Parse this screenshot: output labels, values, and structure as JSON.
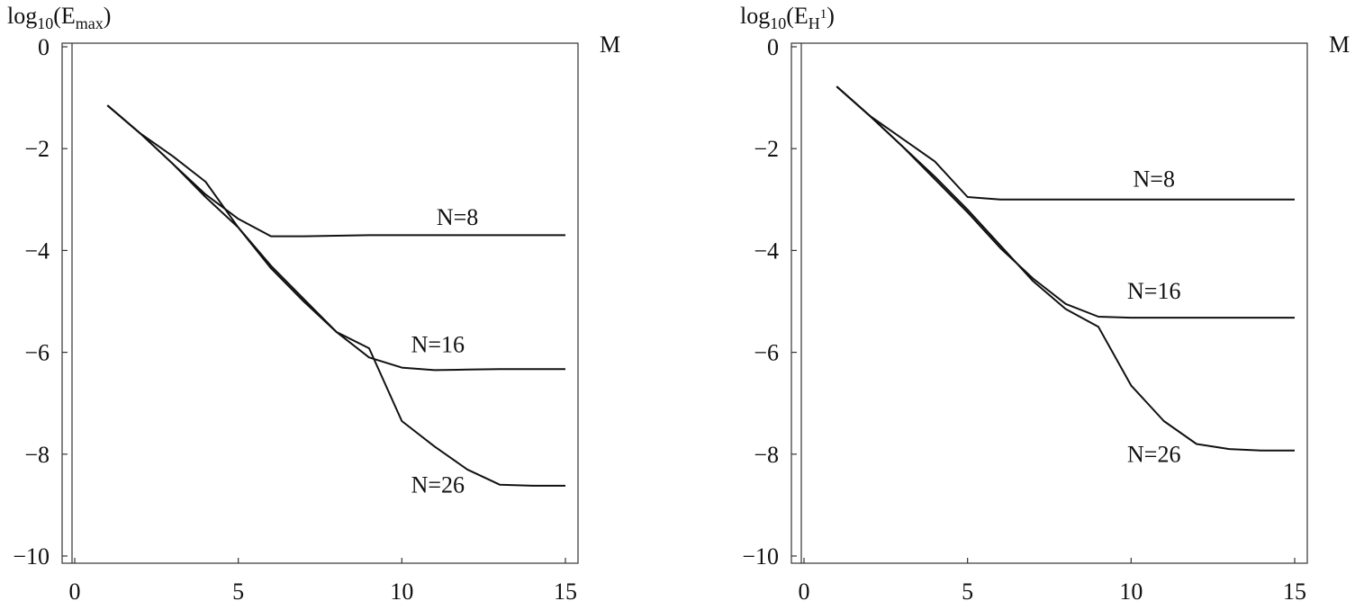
{
  "chart_data": [
    {
      "type": "line",
      "ylabel_base": "log",
      "ylabel_sub": "10",
      "ylabel_open": "(E",
      "ylabel_esub": "max",
      "ylabel_close": ")",
      "xlabel": "M",
      "xlim": [
        0,
        15
      ],
      "ylim": [
        -10,
        0
      ],
      "xticks": [
        0,
        5,
        10,
        15
      ],
      "xtick_labels": [
        "0",
        "5",
        "10",
        "15"
      ],
      "yticks": [
        0,
        -2,
        -4,
        -6,
        -8,
        -10
      ],
      "ytick_labels": [
        "0",
        "−2",
        "−4",
        "−6",
        "−8",
        "−10"
      ],
      "grid": false,
      "series": [
        {
          "name": "N=8",
          "x": [
            1,
            2,
            3,
            4,
            5,
            6,
            7,
            8,
            9,
            10,
            11,
            12,
            13,
            14,
            15
          ],
          "values": [
            -1.15,
            -1.7,
            -2.3,
            -2.9,
            -3.38,
            -3.72,
            -3.72,
            -3.71,
            -3.7,
            -3.7,
            -3.7,
            -3.7,
            -3.7,
            -3.7,
            -3.7
          ],
          "label_anchor": [
            11.7,
            -3.5
          ]
        },
        {
          "name": "N=16",
          "x": [
            1,
            2,
            3,
            4,
            5,
            6,
            7,
            8,
            9,
            10,
            11,
            12,
            13,
            14,
            15
          ],
          "values": [
            -1.15,
            -1.7,
            -2.3,
            -2.95,
            -3.55,
            -4.3,
            -4.95,
            -5.6,
            -6.1,
            -6.3,
            -6.35,
            -6.34,
            -6.33,
            -6.33,
            -6.33
          ],
          "label_anchor": [
            11.1,
            -6.0
          ]
        },
        {
          "name": "N=26",
          "x": [
            1,
            2,
            3,
            4,
            5,
            6,
            7,
            8,
            9,
            10,
            11,
            12,
            13,
            14,
            15
          ],
          "values": [
            -1.15,
            -1.7,
            -2.15,
            -2.65,
            -3.55,
            -4.35,
            -5.0,
            -5.6,
            -5.92,
            -7.35,
            -7.85,
            -8.3,
            -8.6,
            -8.62,
            -8.62
          ],
          "label_anchor": [
            11.1,
            -8.75
          ]
        }
      ]
    },
    {
      "type": "line",
      "ylabel_base": "log",
      "ylabel_sub": "10",
      "ylabel_open": "(E",
      "ylabel_esub": "H",
      "ylabel_esup": "1",
      "ylabel_close": ")",
      "xlabel": "M",
      "xlim": [
        0,
        15
      ],
      "ylim": [
        -10,
        0
      ],
      "xticks": [
        0,
        5,
        10,
        15
      ],
      "xtick_labels": [
        "0",
        "5",
        "10",
        "15"
      ],
      "yticks": [
        0,
        -2,
        -4,
        -6,
        -8,
        -10
      ],
      "ytick_labels": [
        "0",
        "−2",
        "−4",
        "−6",
        "−8",
        "−10"
      ],
      "grid": false,
      "series": [
        {
          "name": "N=8",
          "x": [
            1,
            2,
            3,
            4,
            5,
            6,
            7,
            8,
            9,
            10,
            11,
            12,
            13,
            14,
            15
          ],
          "values": [
            -0.78,
            -1.35,
            -1.8,
            -2.25,
            -2.95,
            -3.0,
            -3.0,
            -3.0,
            -3.0,
            -3.0,
            -3.0,
            -3.0,
            -3.0,
            -3.0,
            -3.0
          ],
          "label_anchor": [
            10.7,
            -2.75
          ]
        },
        {
          "name": "N=16",
          "x": [
            1,
            2,
            3,
            4,
            5,
            6,
            7,
            8,
            9,
            10,
            11,
            12,
            13,
            14,
            15
          ],
          "values": [
            -0.78,
            -1.35,
            -1.95,
            -2.6,
            -3.25,
            -3.95,
            -4.55,
            -5.05,
            -5.3,
            -5.32,
            -5.32,
            -5.32,
            -5.32,
            -5.32,
            -5.32
          ],
          "label_anchor": [
            10.7,
            -4.95
          ]
        },
        {
          "name": "N=26",
          "x": [
            1,
            2,
            3,
            4,
            5,
            6,
            7,
            8,
            9,
            10,
            11,
            12,
            13,
            14,
            15
          ],
          "values": [
            -0.78,
            -1.35,
            -1.95,
            -2.55,
            -3.2,
            -3.9,
            -4.6,
            -5.15,
            -5.5,
            -6.65,
            -7.35,
            -7.8,
            -7.9,
            -7.93,
            -7.93
          ],
          "label_anchor": [
            10.7,
            -8.15
          ]
        }
      ]
    }
  ]
}
